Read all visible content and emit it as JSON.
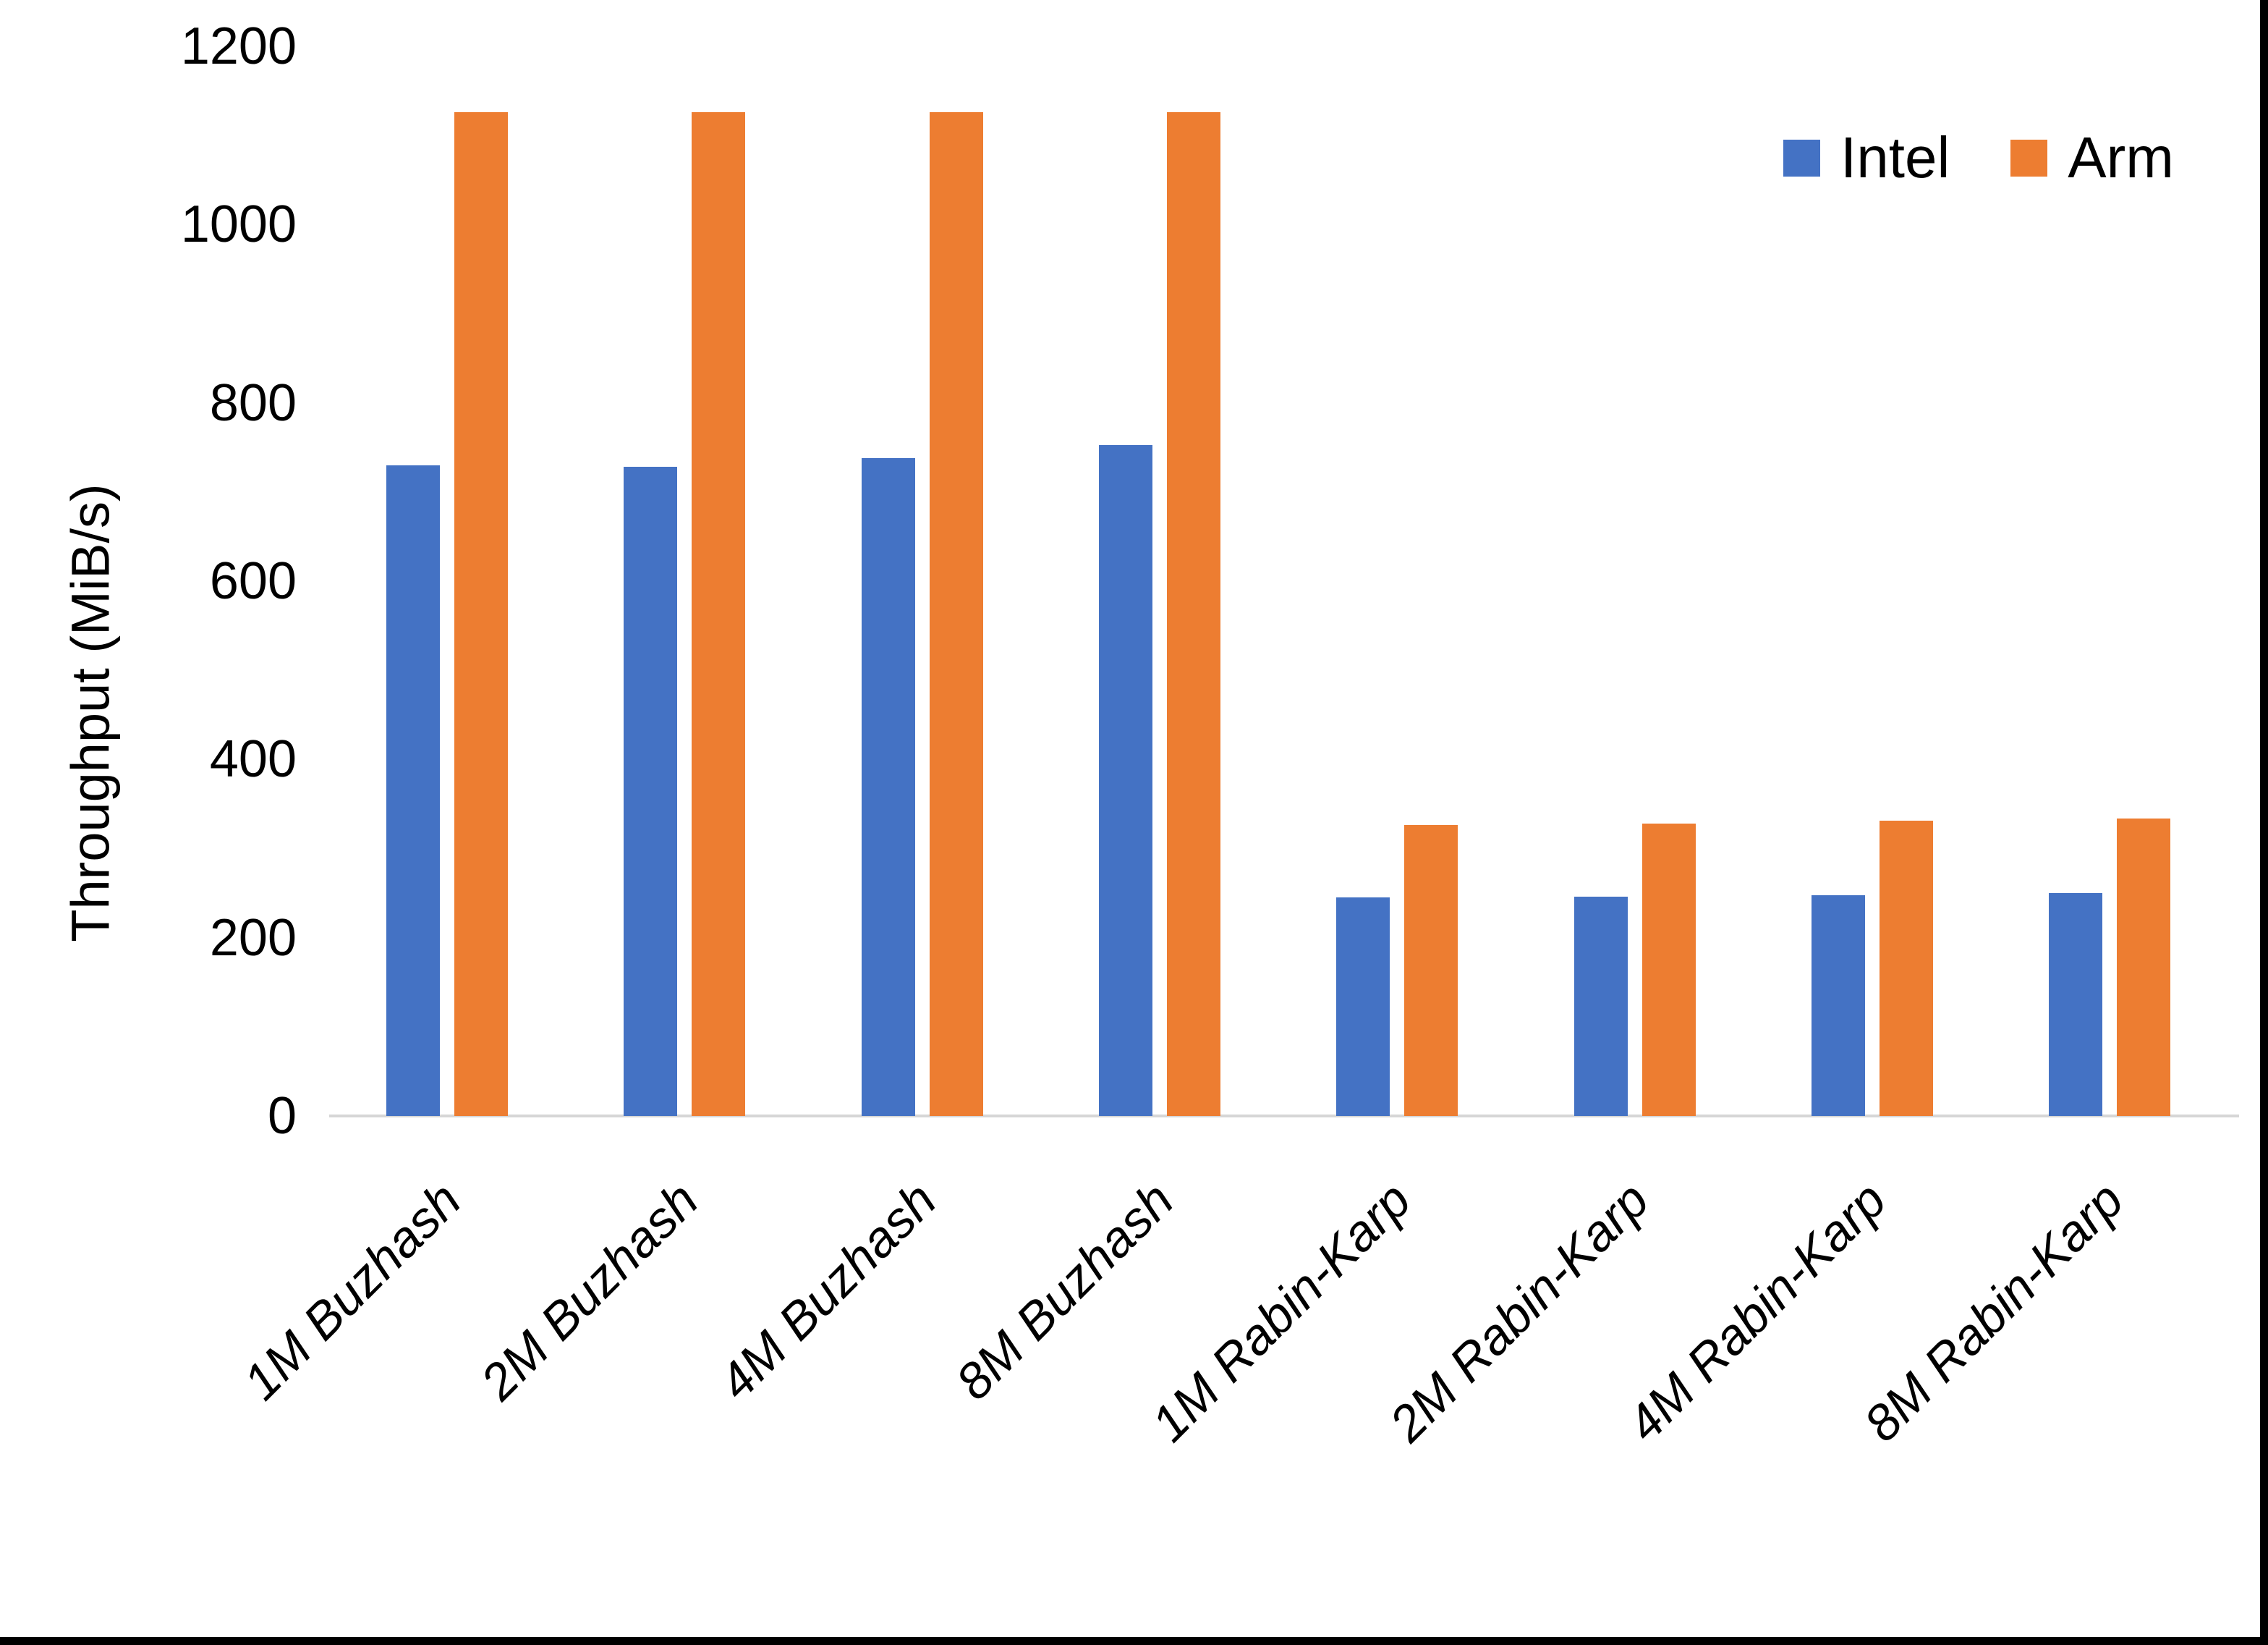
{
  "chart_data": {
    "type": "bar",
    "title": "",
    "xlabel": "",
    "ylabel": "Throughput (MiB/s)",
    "ylim": [
      0,
      1200
    ],
    "yticks": [
      0,
      200,
      400,
      600,
      800,
      1000,
      1200
    ],
    "grid": "off",
    "legend_position": "top-right",
    "categories": [
      "1M Buzhash",
      "2M Buzhash",
      "4M Buzhash",
      "8M Buzhash",
      "1M Rabin-Karp",
      "2M Rabin-Karp",
      "4M Rabin-Karp",
      "8M Rabin-Karp"
    ],
    "series": [
      {
        "name": "Intel",
        "color": "#4472C4",
        "values": [
          730,
          728,
          738,
          753,
          245,
          246,
          248,
          250
        ]
      },
      {
        "name": "Arm",
        "color": "#ED7D31",
        "values": [
          1126,
          1126,
          1126,
          1126,
          326,
          328,
          331,
          334
        ]
      }
    ]
  },
  "colors": {
    "axis_line": "#D6D6D6",
    "text": "#000000",
    "page_border": "#000000"
  }
}
